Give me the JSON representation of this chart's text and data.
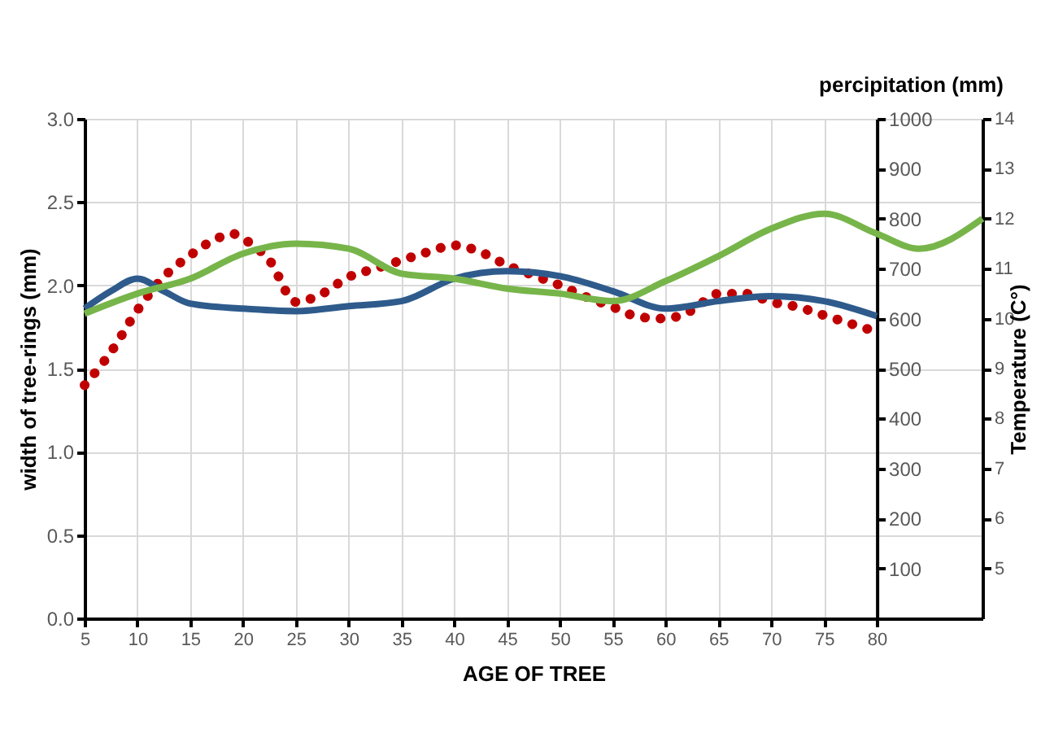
{
  "chart_data": {
    "type": "line",
    "xlabel": "AGE OF TREE",
    "ylabel": "width of tree-rings (mm)",
    "y2label": "percipitation (mm)",
    "y3label": "Temperature (C°)",
    "xlim": [
      5,
      90
    ],
    "xticks": [
      5,
      10,
      15,
      20,
      25,
      30,
      35,
      40,
      45,
      50,
      55,
      60,
      65,
      70,
      75,
      80
    ],
    "ylim": [
      0,
      3
    ],
    "yticks": [
      {
        "value": 0,
        "label": "0.0"
      },
      {
        "value": 0.5,
        "label": "0.5"
      },
      {
        "value": 1,
        "label": "1.0"
      },
      {
        "value": 1.5,
        "label": "1.5"
      },
      {
        "value": 2,
        "label": "2.0"
      },
      {
        "value": 2.5,
        "label": "2.5"
      },
      {
        "value": 3,
        "label": "3.0"
      }
    ],
    "y2lim": [
      0,
      1000
    ],
    "y2ticks": [
      100,
      200,
      300,
      400,
      500,
      600,
      700,
      800,
      900,
      1000
    ],
    "y3lim": [
      4,
      14
    ],
    "y3ticks": [
      5,
      6,
      7,
      8,
      9,
      10,
      11,
      12,
      13,
      14
    ],
    "grid": true,
    "series": [
      {
        "color": "#c00000",
        "line_style": "dotted",
        "x": [
          5,
          7.5,
          10,
          12.5,
          15,
          17.5,
          19,
          20,
          22.5,
          25,
          27.5,
          30,
          32.5,
          35,
          37.5,
          40,
          42.5,
          45,
          47.5,
          50,
          52.5,
          55,
          57.5,
          60,
          62.5,
          65,
          67.5,
          70,
          72.5,
          75,
          77.5,
          80
        ],
        "values": [
          1.4,
          1.6,
          1.85,
          2.05,
          2.18,
          2.28,
          2.31,
          2.28,
          2.15,
          1.9,
          1.95,
          2.05,
          2.1,
          2.15,
          2.2,
          2.24,
          2.2,
          2.12,
          2.06,
          2.0,
          1.93,
          1.87,
          1.81,
          1.8,
          1.85,
          1.95,
          1.95,
          1.9,
          1.87,
          1.82,
          1.77,
          1.72
        ]
      },
      {
        "color": "#2e5b8c",
        "axis": "y2",
        "x": [
          5,
          7.5,
          10,
          12.5,
          15,
          20,
          25,
          30,
          35,
          40,
          45,
          50,
          55,
          60,
          65,
          70,
          75,
          80
        ],
        "values": [
          620,
          655,
          680,
          655,
          630,
          620,
          615,
          625,
          635,
          680,
          695,
          685,
          655,
          620,
          635,
          645,
          635,
          605
        ]
      },
      {
        "color": "#77b54a",
        "axis": "y3",
        "x": [
          5,
          10,
          15,
          20,
          25,
          30,
          35,
          40,
          45,
          50,
          55,
          60,
          65,
          70,
          75,
          80,
          84,
          90
        ],
        "values": [
          10.1,
          10.5,
          10.8,
          11.3,
          11.5,
          11.4,
          10.9,
          10.8,
          10.6,
          10.5,
          10.35,
          10.75,
          11.25,
          11.8,
          12.1,
          11.7,
          11.4,
          12.0
        ]
      }
    ]
  }
}
